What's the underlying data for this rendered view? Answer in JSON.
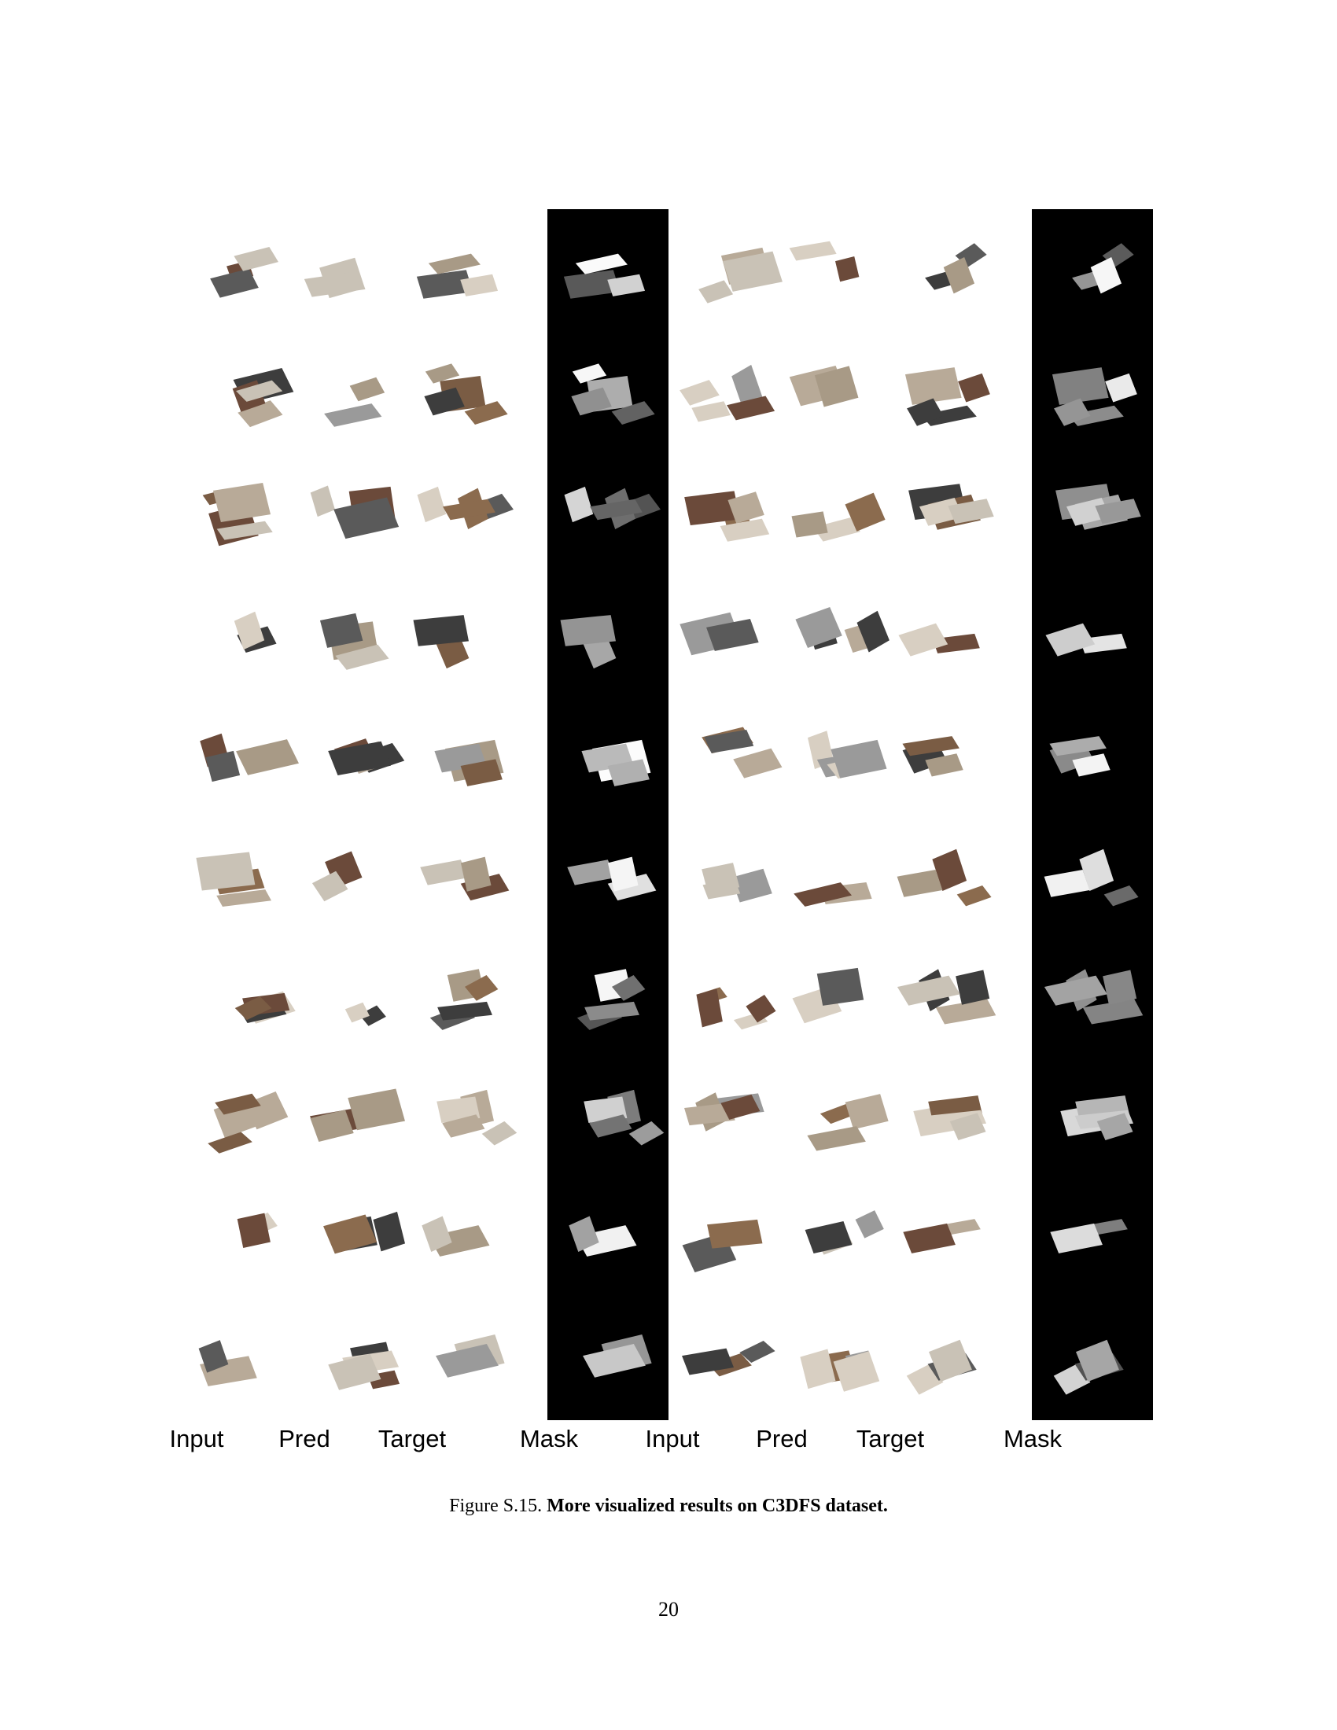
{
  "figure": {
    "column_labels": [
      "Input",
      "Pred",
      "Target",
      "Mask",
      "Input",
      "Pred",
      "Target",
      "Mask"
    ],
    "rows": 10,
    "groups": 2
  },
  "caption": {
    "prefix": "Figure S.15.",
    "text": "More visualized results on C3DFS dataset."
  },
  "page_number": "20"
}
